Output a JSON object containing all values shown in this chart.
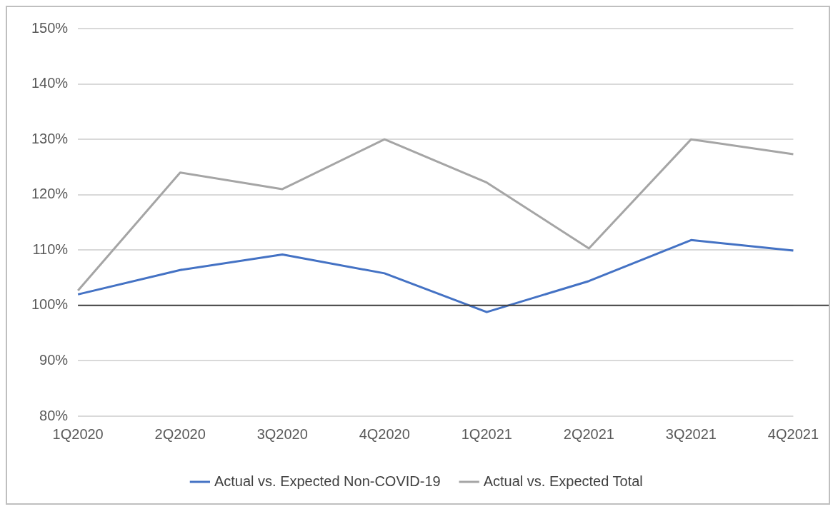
{
  "chart_data": {
    "type": "line",
    "categories": [
      "1Q2020",
      "2Q2020",
      "3Q2020",
      "4Q2020",
      "1Q2021",
      "2Q2021",
      "3Q2021",
      "4Q2021"
    ],
    "series": [
      {
        "name": "Actual vs. Expected Non-COVID-19",
        "color": "#4472c4",
        "values": [
          102.0,
          106.4,
          109.2,
          105.8,
          98.8,
          104.4,
          111.8,
          109.9
        ]
      },
      {
        "name": "Actual vs. Expected Total",
        "color": "#a5a5a5",
        "values": [
          102.7,
          124.0,
          121.0,
          130.0,
          122.2,
          110.3,
          130.0,
          127.3
        ]
      }
    ],
    "ylim": [
      80,
      150
    ],
    "yticks": [
      {
        "value": 80,
        "label": "80%"
      },
      {
        "value": 90,
        "label": "90%"
      },
      {
        "value": 100,
        "label": "100%"
      },
      {
        "value": 110,
        "label": "110%"
      },
      {
        "value": 120,
        "label": "120%"
      },
      {
        "value": 130,
        "label": "130%"
      },
      {
        "value": 140,
        "label": "140%"
      },
      {
        "value": 150,
        "label": "150%"
      }
    ],
    "ref_lines": [
      {
        "axis": "y",
        "value": 100,
        "color": "#404040"
      }
    ],
    "grid": "y",
    "legend": "bottom",
    "marker": "none",
    "line_style": "solid"
  }
}
